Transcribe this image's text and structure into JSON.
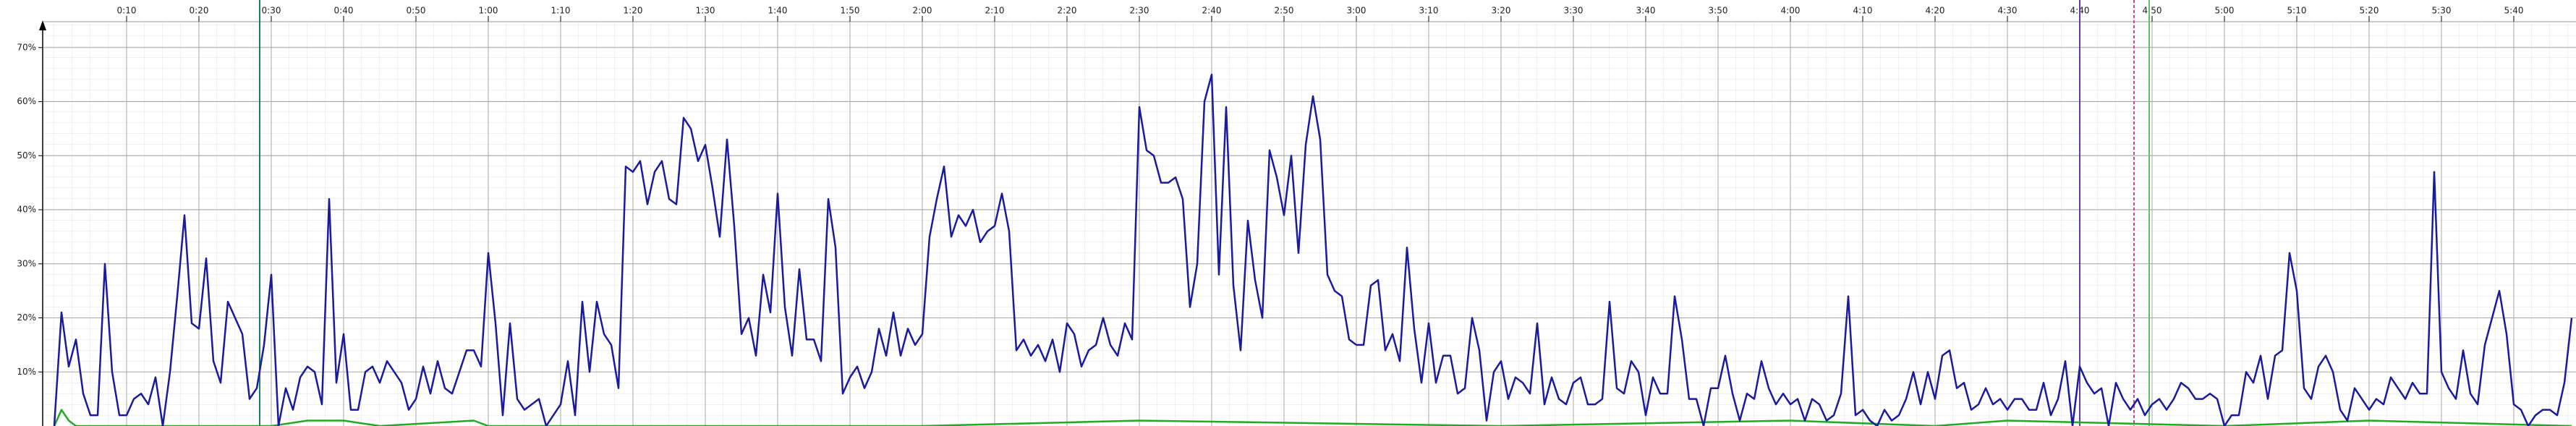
{
  "chart_data": {
    "type": "line",
    "xlim": [
      0,
      348.5
    ],
    "ylim": [
      0,
      78.8
    ],
    "grid": true,
    "xticks": [
      {
        "value": 10,
        "label": "0:10"
      },
      {
        "value": 20,
        "label": "0:20"
      },
      {
        "value": 30,
        "label": "0:30"
      },
      {
        "value": 40,
        "label": "0:40"
      },
      {
        "value": 50,
        "label": "0:50"
      },
      {
        "value": 60,
        "label": "1:00"
      },
      {
        "value": 70,
        "label": "1:10"
      },
      {
        "value": 80,
        "label": "1:20"
      },
      {
        "value": 90,
        "label": "1:30"
      },
      {
        "value": 100,
        "label": "1:40"
      },
      {
        "value": 110,
        "label": "1:50"
      },
      {
        "value": 120,
        "label": "2:00"
      },
      {
        "value": 130,
        "label": "2:10"
      },
      {
        "value": 140,
        "label": "2:20"
      },
      {
        "value": 150,
        "label": "2:30"
      },
      {
        "value": 160,
        "label": "2:40"
      },
      {
        "value": 170,
        "label": "2:50"
      },
      {
        "value": 180,
        "label": "3:00"
      },
      {
        "value": 190,
        "label": "3:10"
      },
      {
        "value": 200,
        "label": "3:20"
      },
      {
        "value": 210,
        "label": "3:30"
      },
      {
        "value": 220,
        "label": "3:40"
      },
      {
        "value": 230,
        "label": "3:50"
      },
      {
        "value": 240,
        "label": "4:00"
      },
      {
        "value": 250,
        "label": "4:10"
      },
      {
        "value": 260,
        "label": "4:20"
      },
      {
        "value": 270,
        "label": "4:30"
      },
      {
        "value": 280,
        "label": "4:40"
      },
      {
        "value": 290,
        "label": "4:50"
      },
      {
        "value": 300,
        "label": "5:00"
      },
      {
        "value": 310,
        "label": "5:10"
      },
      {
        "value": 320,
        "label": "5:20"
      },
      {
        "value": 330,
        "label": "5:30"
      },
      {
        "value": 340,
        "label": "5:40"
      }
    ],
    "yticks": [
      {
        "value": 10,
        "label": "10%"
      },
      {
        "value": 20,
        "label": "20%"
      },
      {
        "value": 30,
        "label": "30%"
      },
      {
        "value": 40,
        "label": "40%"
      },
      {
        "value": 50,
        "label": "50%"
      },
      {
        "value": 60,
        "label": "60%"
      },
      {
        "value": 70,
        "label": "70%"
      }
    ],
    "markers": [
      {
        "x": 28.4,
        "color": "#1f7a6a"
      },
      {
        "x": 280,
        "color": "#6a3aa0"
      },
      {
        "x": 287.5,
        "color": "#d040a0",
        "dashed": true
      },
      {
        "x": 289.6,
        "color": "#60c060"
      }
    ],
    "series": [
      {
        "color": "#1a1aa0",
        "x": [
          0,
          1,
          2,
          3,
          4,
          5,
          6,
          7,
          8,
          9,
          10,
          11,
          12,
          13,
          14,
          15,
          16,
          17,
          18,
          19,
          20,
          21,
          22,
          23,
          24,
          25,
          26,
          27,
          28,
          29,
          30,
          31,
          32,
          33,
          34,
          35,
          36,
          37,
          38,
          39,
          40,
          41,
          42,
          43,
          44,
          45,
          46,
          47,
          48,
          49,
          50,
          51,
          52,
          53,
          54,
          55,
          56,
          57,
          58,
          59,
          60,
          61,
          62,
          63,
          64,
          65,
          66,
          67,
          68,
          69,
          70,
          71,
          72,
          73,
          74,
          75,
          76,
          77,
          78,
          79,
          80,
          81,
          82,
          83,
          84,
          85,
          86,
          87,
          88,
          89,
          90,
          91,
          92,
          93,
          94,
          95,
          96,
          97,
          98,
          99,
          100,
          101,
          102,
          103,
          104,
          105,
          106,
          107,
          108,
          109,
          110,
          111,
          112,
          113,
          114,
          115,
          116,
          117,
          118,
          119,
          120,
          121,
          122,
          123,
          124,
          125,
          126,
          127,
          128,
          129,
          130,
          131,
          132,
          133,
          134,
          135,
          136,
          137,
          138,
          139,
          140,
          141,
          142,
          143,
          144,
          145,
          146,
          147,
          148,
          149,
          150,
          151,
          152,
          153,
          154,
          155,
          156,
          157,
          158,
          159,
          160,
          161,
          162,
          163,
          164,
          165,
          166,
          167,
          168,
          169,
          170,
          171,
          172,
          173,
          174,
          175,
          176,
          177,
          178,
          179,
          180,
          181,
          182,
          183,
          184,
          185,
          186,
          187,
          188,
          189,
          190,
          191,
          192,
          193,
          194,
          195,
          196,
          197,
          198,
          199,
          200,
          201,
          202,
          203,
          204,
          205,
          206,
          207,
          208,
          209,
          210,
          211,
          212,
          213,
          214,
          215,
          216,
          217,
          218,
          219,
          220,
          221,
          222,
          223,
          224,
          225,
          226,
          227,
          228,
          229,
          230,
          231,
          232,
          233,
          234,
          235,
          236,
          237,
          238,
          239,
          240,
          241,
          242,
          243,
          244,
          245,
          246,
          247,
          248,
          249,
          250,
          251,
          252,
          253,
          254,
          255,
          256,
          257,
          258,
          259,
          260,
          261,
          262,
          263,
          264,
          265,
          266,
          267,
          268,
          269,
          270,
          271,
          272,
          273,
          274,
          275,
          276,
          277,
          278,
          279,
          280,
          281,
          282,
          283,
          284,
          285,
          286,
          287,
          288,
          289,
          290,
          291,
          292,
          293,
          294,
          295,
          296,
          297,
          298,
          299,
          300,
          301,
          302,
          303,
          304,
          305,
          306,
          307,
          308,
          309,
          310,
          311,
          312,
          313,
          314,
          315,
          316,
          317,
          318,
          319,
          320,
          321,
          322,
          323,
          324,
          325,
          326,
          327,
          328,
          329,
          330,
          331,
          332,
          333,
          334,
          335,
          336,
          337,
          338,
          339,
          340,
          341,
          342,
          343,
          344,
          345,
          346,
          347,
          348
        ],
        "values": [
          0,
          21,
          11,
          16,
          6,
          2,
          2,
          30,
          10,
          2,
          2,
          5,
          6,
          4,
          9,
          0,
          10,
          24,
          39,
          19,
          18,
          31,
          12,
          8,
          23,
          20,
          17,
          5,
          7,
          15,
          28,
          0,
          7,
          3,
          9,
          11,
          10,
          4,
          42,
          8,
          17,
          3,
          3,
          10,
          11,
          8,
          12,
          10,
          8,
          3,
          5,
          11,
          6,
          12,
          7,
          6,
          10,
          14,
          14,
          11,
          32,
          19,
          2,
          19,
          5,
          3,
          4,
          5,
          0,
          2,
          4,
          12,
          2,
          23,
          10,
          23,
          17,
          15,
          7,
          48,
          47,
          49,
          41,
          47,
          49,
          42,
          41,
          57,
          55,
          49,
          52,
          44,
          35,
          53,
          37,
          17,
          20,
          13,
          28,
          21,
          43,
          22,
          13,
          29,
          16,
          16,
          12,
          42,
          33,
          6,
          9,
          11,
          7,
          10,
          18,
          13,
          21,
          13,
          18,
          15,
          17,
          35,
          42,
          48,
          35,
          39,
          37,
          40,
          34,
          36,
          37,
          43,
          36,
          14,
          16,
          13,
          15,
          12,
          16,
          10,
          19,
          17,
          11,
          14,
          15,
          20,
          15,
          13,
          19,
          16,
          59,
          51,
          50,
          45,
          45,
          46,
          42,
          22,
          30,
          60,
          65,
          28,
          59,
          26,
          14,
          38,
          27,
          20,
          51,
          46,
          39,
          50,
          32,
          52,
          61,
          53,
          28,
          25,
          24,
          16,
          15,
          15,
          26,
          27,
          14,
          17,
          12,
          33,
          18,
          8,
          19,
          8,
          13,
          13,
          6,
          7,
          20,
          14,
          1,
          10,
          12,
          5,
          9,
          8,
          6,
          19,
          4,
          9,
          5,
          4,
          8,
          9,
          4,
          4,
          5,
          23,
          7,
          6,
          12,
          10,
          2,
          9,
          6,
          6,
          24,
          16,
          5,
          5,
          0,
          7,
          7,
          13,
          6,
          1,
          6,
          5,
          12,
          7,
          4,
          6,
          4,
          5,
          1,
          5,
          4,
          1,
          2,
          6,
          24,
          2,
          3,
          1,
          0,
          3,
          1,
          2,
          5,
          10,
          4,
          10,
          5,
          13,
          14,
          7,
          8,
          3,
          4,
          7,
          4,
          5,
          3,
          5,
          5,
          3,
          3,
          8,
          2,
          5,
          12,
          0,
          11,
          8,
          6,
          7,
          0,
          8,
          5,
          3,
          5,
          2,
          4,
          5,
          3,
          5,
          8,
          7,
          5,
          5,
          6,
          5,
          0,
          2,
          2,
          10,
          8,
          13,
          5,
          13,
          14,
          32,
          25,
          7,
          5,
          11,
          13,
          10,
          3,
          1,
          7,
          5,
          3,
          5,
          4,
          9,
          7,
          5,
          8,
          6,
          6,
          47,
          10,
          7,
          5,
          14,
          6,
          4,
          15,
          20,
          25,
          17,
          4,
          3,
          0,
          2,
          3,
          3,
          2,
          8,
          20
        ]
      },
      {
        "color": "#22aa22",
        "x": [
          0,
          1,
          2,
          3,
          30,
          35,
          40,
          45,
          58,
          60,
          120,
          150,
          200,
          240,
          260,
          270,
          300,
          320,
          348
        ],
        "values": [
          0,
          3,
          1,
          0,
          0,
          1,
          1,
          0,
          1,
          0,
          0,
          1,
          0,
          1,
          0,
          1,
          0,
          1,
          0
        ]
      }
    ]
  }
}
